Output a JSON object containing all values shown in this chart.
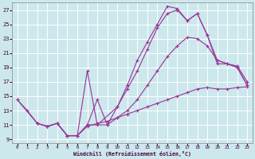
{
  "bg_color": "#cce8ec",
  "grid_color": "#ffffff",
  "line_color": "#993399",
  "xlim": [
    -0.5,
    23.5
  ],
  "ylim": [
    8.5,
    28.0
  ],
  "xticks": [
    0,
    1,
    2,
    3,
    4,
    5,
    6,
    7,
    8,
    9,
    10,
    11,
    12,
    13,
    14,
    15,
    16,
    17,
    18,
    19,
    20,
    21,
    22,
    23
  ],
  "yticks": [
    9,
    11,
    13,
    15,
    17,
    19,
    21,
    23,
    25,
    27
  ],
  "xlabel": "Windchill (Refroidissement éolien,°C)",
  "curve1_x": [
    0,
    1,
    2,
    3,
    4,
    5,
    6,
    7,
    8,
    9,
    10,
    11,
    12,
    13,
    14,
    15,
    16,
    17,
    18,
    19,
    20,
    21,
    22,
    23
  ],
  "curve1_y": [
    14.5,
    13.0,
    11.2,
    10.8,
    11.2,
    9.5,
    9.5,
    10.8,
    11.2,
    11.5,
    12.0,
    12.5,
    13.0,
    13.5,
    14.0,
    14.5,
    15.0,
    15.5,
    16.0,
    16.2,
    16.0,
    16.0,
    16.2,
    16.3
  ],
  "curve2_x": [
    0,
    2,
    3,
    4,
    5,
    6,
    7,
    8,
    9,
    10,
    11,
    12,
    13,
    14,
    15,
    16,
    17,
    18,
    19,
    20,
    21,
    22,
    23
  ],
  "curve2_y": [
    14.5,
    11.2,
    10.8,
    11.2,
    9.5,
    9.5,
    11.0,
    14.5,
    11.0,
    12.0,
    13.0,
    14.5,
    16.5,
    18.5,
    20.5,
    22.0,
    23.2,
    23.0,
    22.0,
    20.0,
    19.5,
    19.2,
    17.0
  ],
  "curve3_x": [
    2,
    3,
    4,
    5,
    6,
    7,
    8,
    10,
    11,
    12,
    13,
    14,
    15,
    16,
    17,
    18,
    19,
    20,
    21,
    22,
    23
  ],
  "curve3_y": [
    11.2,
    10.8,
    11.2,
    9.5,
    9.5,
    18.5,
    11.0,
    13.5,
    16.0,
    18.5,
    21.5,
    24.5,
    26.5,
    27.0,
    25.5,
    26.5,
    23.5,
    20.0,
    19.5,
    19.0,
    16.5
  ],
  "curve4_x": [
    2,
    3,
    4,
    5,
    6,
    7,
    9,
    10,
    11,
    12,
    13,
    14,
    15,
    16,
    17,
    18,
    19,
    20,
    21,
    22,
    23
  ],
  "curve4_y": [
    11.2,
    10.8,
    11.2,
    9.5,
    9.5,
    11.0,
    11.0,
    13.5,
    16.5,
    20.0,
    22.5,
    25.0,
    27.5,
    27.2,
    25.5,
    26.5,
    23.5,
    19.5,
    19.5,
    19.0,
    16.5
  ]
}
